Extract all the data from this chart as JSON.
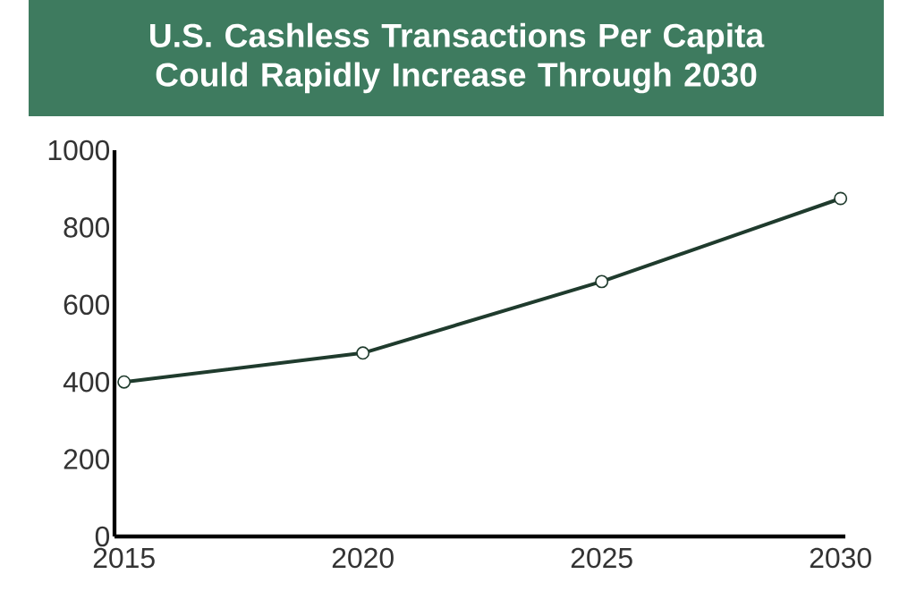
{
  "chart_data": {
    "type": "line",
    "title": "U.S. Cashless Transactions Per Capita Could Rapidly Increase Through 2030",
    "x": [
      2015,
      2020,
      2025,
      2030
    ],
    "series": [
      {
        "color": "#1f3b2d",
        "values": [
          400,
          475,
          660,
          875
        ]
      }
    ],
    "xlim": [
      2014.8,
      2030.1
    ],
    "xticks": [
      2015,
      2020,
      2025,
      2030
    ],
    "ylim": [
      0,
      1000
    ],
    "yticks": [
      0,
      200,
      400,
      600,
      800,
      1000
    ],
    "marker": "circle"
  }
}
